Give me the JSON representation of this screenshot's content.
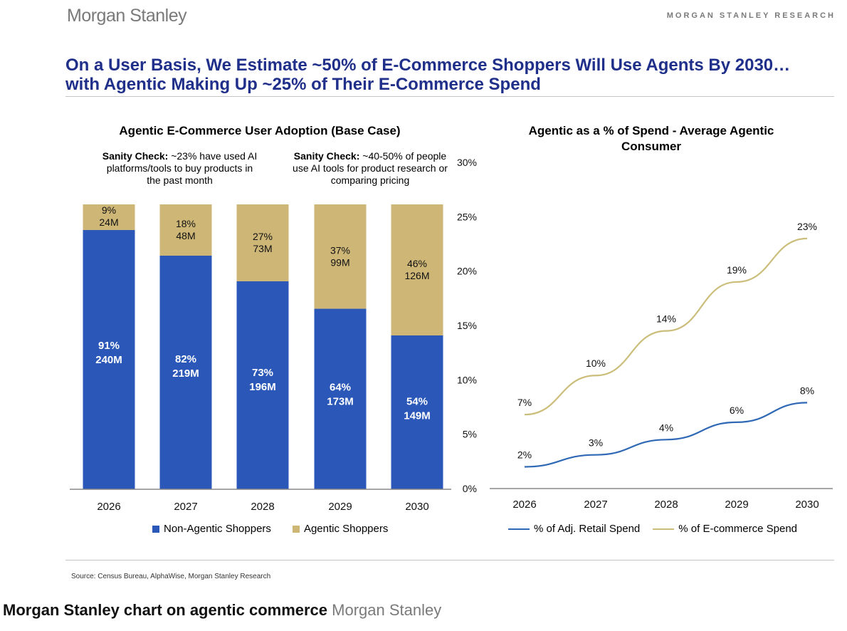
{
  "header": {
    "brand": "Morgan Stanley",
    "research_label": "MORGAN STANLEY RESEARCH",
    "headline": "On a User Basis, We Estimate ~50% of E-Commerce Shoppers Will Use Agents By 2030…with Agentic Making Up ~25% of Their E-Commerce Spend"
  },
  "footer": {
    "source": "Source: Census Bureau, AlphaWise, Morgan Stanley Research",
    "caption": "Morgan Stanley chart on agentic commerce",
    "caption_credit": "Morgan Stanley"
  },
  "colors": {
    "blue": "#2b58b8",
    "gold": "#cdb676",
    "navy": "#1f2f8a",
    "line_blue": "#2f68b5",
    "line_gold": "#cbbd7a"
  },
  "chart_data": [
    {
      "type": "bar",
      "stacked": true,
      "title": "Agentic E-Commerce User Adoption (Base Case)",
      "annotations": [
        {
          "label": "Sanity Check:",
          "text": "~23% have used AI platforms/tools to buy products in the past month"
        },
        {
          "label": "Sanity Check:",
          "text": "~40-50% of people use AI tools for product research or comparing pricing"
        }
      ],
      "categories": [
        "2026",
        "2027",
        "2028",
        "2029",
        "2030"
      ],
      "series": [
        {
          "name": "Non-Agentic Shoppers",
          "color": "#2b58b8",
          "values": [
            91,
            82,
            73,
            64,
            54
          ],
          "pct_labels": [
            "91%",
            "82%",
            "73%",
            "64%",
            "54%"
          ],
          "count_labels": [
            "240M",
            "219M",
            "196M",
            "173M",
            "149M"
          ]
        },
        {
          "name": "Agentic Shoppers",
          "color": "#cdb676",
          "values": [
            9,
            18,
            27,
            37,
            46
          ],
          "pct_labels": [
            "9%",
            "18%",
            "27%",
            "37%",
            "46%"
          ],
          "count_labels": [
            "24M",
            "48M",
            "73M",
            "99M",
            "126M"
          ]
        }
      ],
      "ylim": [
        0,
        100
      ]
    },
    {
      "type": "line",
      "title_lines": [
        "Agentic as a % of Spend - Average Agentic",
        "Consumer"
      ],
      "x": [
        "2026",
        "2027",
        "2028",
        "2029",
        "2030"
      ],
      "yticks": [
        "0%",
        "5%",
        "10%",
        "15%",
        "20%",
        "25%",
        "30%"
      ],
      "ylim": [
        0,
        30
      ],
      "series": [
        {
          "name": "% of Adj. Retail Spend",
          "color": "#2f68b5",
          "values": [
            2.0,
            3.1,
            4.5,
            6.1,
            7.9
          ],
          "labels": [
            "2%",
            "3%",
            "4%",
            "6%",
            "8%"
          ]
        },
        {
          "name": "% of E-commerce Spend",
          "color": "#cbbd7a",
          "values": [
            6.8,
            10.4,
            14.5,
            19.0,
            23.0
          ],
          "labels": [
            "7%",
            "10%",
            "14%",
            "19%",
            "23%"
          ]
        }
      ]
    }
  ]
}
